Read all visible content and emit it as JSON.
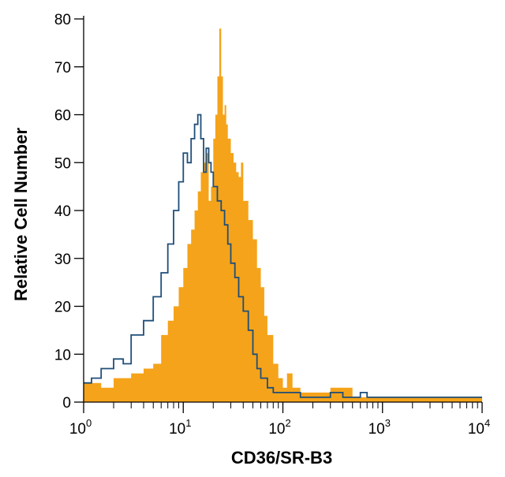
{
  "chart_data": {
    "type": "area",
    "title": "",
    "xlabel": "CD36/SR-B3",
    "ylabel": "Relative Cell Number",
    "x_scale": "log",
    "xlim": [
      1,
      10000
    ],
    "ylim": [
      0,
      80
    ],
    "x_ticks": [
      {
        "base": "10",
        "exp": "0"
      },
      {
        "base": "10",
        "exp": "1"
      },
      {
        "base": "10",
        "exp": "2"
      },
      {
        "base": "10",
        "exp": "3"
      },
      {
        "base": "10",
        "exp": "4"
      }
    ],
    "y_ticks": [
      "0",
      "10",
      "20",
      "30",
      "40",
      "50",
      "60",
      "70",
      "80"
    ],
    "grid": false,
    "legend": "none",
    "colors": {
      "filled": "#f5a31a",
      "outline": "#1f4e79"
    },
    "series": [
      {
        "style": "filled",
        "x": [
          1.0,
          1.5,
          2.0,
          3.0,
          4.0,
          5.0,
          6.0,
          7.0,
          8.0,
          9.0,
          10.0,
          11.0,
          12.0,
          13.0,
          14.0,
          15.0,
          16.0,
          17.0,
          18.0,
          19.0,
          20.0,
          21.0,
          22.0,
          23.0,
          24.0,
          25.0,
          26.0,
          27.0,
          28.0,
          30.0,
          32.0,
          34.0,
          36.0,
          38.0,
          40.0,
          45.0,
          50.0,
          55.0,
          60.0,
          65.0,
          70.0,
          80.0,
          90.0,
          100.0,
          110.0,
          125.0,
          150.0,
          200.0,
          300.0,
          500.0,
          1000.0,
          2000.0,
          10000.0
        ],
        "y": [
          4,
          3,
          5,
          6,
          7,
          8,
          14,
          17,
          20,
          24,
          28,
          33,
          36,
          40,
          44,
          48,
          50,
          52,
          42,
          45,
          55,
          60,
          68,
          78,
          68,
          60,
          62,
          58,
          55,
          52,
          50,
          48,
          47,
          50,
          42,
          38,
          34,
          28,
          24,
          18,
          14,
          8,
          5,
          3,
          6,
          3,
          2,
          2,
          3,
          1,
          1,
          1,
          1
        ]
      },
      {
        "style": "outline",
        "x": [
          1.0,
          1.2,
          1.5,
          2.0,
          2.5,
          3.0,
          4.0,
          5.0,
          6.0,
          7.0,
          8.0,
          9.0,
          10.0,
          11.0,
          12.0,
          13.0,
          14.0,
          15.0,
          16.0,
          17.0,
          18.0,
          19.0,
          20.0,
          22.0,
          24.0,
          26.0,
          28.0,
          30.0,
          33.0,
          36.0,
          40.0,
          45.0,
          50.0,
          55.0,
          60.0,
          70.0,
          80.0,
          100.0,
          150.0,
          200.0,
          300.0,
          400.0,
          600.0,
          700.0,
          1000.0,
          10000.0
        ],
        "y": [
          4,
          5,
          7,
          9,
          8,
          14,
          17,
          22,
          27,
          33,
          40,
          46,
          52,
          50,
          55,
          58,
          60,
          55,
          48,
          53,
          50,
          48,
          45,
          42,
          40,
          37,
          33,
          29,
          26,
          22,
          19,
          15,
          10,
          7,
          5,
          3,
          2,
          2,
          1,
          1,
          2,
          1,
          2,
          1,
          1,
          1
        ]
      }
    ]
  }
}
